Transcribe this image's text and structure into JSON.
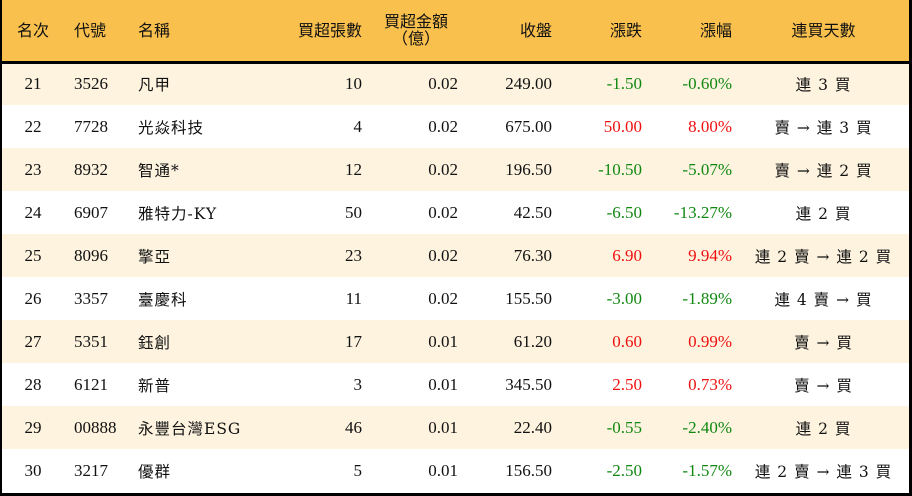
{
  "headers": {
    "rank": "名次",
    "code": "代號",
    "name": "名稱",
    "net_buy_lots": "買超張數",
    "net_buy_amount_line1": "買超金額",
    "net_buy_amount_line2": "（億）",
    "close": "收盤",
    "change": "漲跌",
    "change_pct": "漲幅",
    "streak": "連買天數"
  },
  "colors": {
    "header_bg": "#f9c04d",
    "row_alt_bg": "#fdf3df",
    "up": "#ee1111",
    "down": "#118811",
    "border": "#000000"
  },
  "rows": [
    {
      "rank": "21",
      "code": "3526",
      "name": "凡甲",
      "lots": "10",
      "amount": "0.02",
      "close": "249.00",
      "change": "-1.50",
      "change_pct": "-0.60%",
      "direction": "down",
      "streak": "連 3 買"
    },
    {
      "rank": "22",
      "code": "7728",
      "name": "光焱科技",
      "lots": "4",
      "amount": "0.02",
      "close": "675.00",
      "change": "50.00",
      "change_pct": "8.00%",
      "direction": "up",
      "streak": "賣 → 連 3 買"
    },
    {
      "rank": "23",
      "code": "8932",
      "name": "智通*",
      "lots": "12",
      "amount": "0.02",
      "close": "196.50",
      "change": "-10.50",
      "change_pct": "-5.07%",
      "direction": "down",
      "streak": "賣 → 連 2 買"
    },
    {
      "rank": "24",
      "code": "6907",
      "name": "雅特力-KY",
      "lots": "50",
      "amount": "0.02",
      "close": "42.50",
      "change": "-6.50",
      "change_pct": "-13.27%",
      "direction": "down",
      "streak": "連 2 買"
    },
    {
      "rank": "25",
      "code": "8096",
      "name": "擎亞",
      "lots": "23",
      "amount": "0.02",
      "close": "76.30",
      "change": "6.90",
      "change_pct": "9.94%",
      "direction": "up",
      "streak": "連 2 賣 → 連 2 買"
    },
    {
      "rank": "26",
      "code": "3357",
      "name": "臺慶科",
      "lots": "11",
      "amount": "0.02",
      "close": "155.50",
      "change": "-3.00",
      "change_pct": "-1.89%",
      "direction": "down",
      "streak": "連 4 賣 → 買"
    },
    {
      "rank": "27",
      "code": "5351",
      "name": "鈺創",
      "lots": "17",
      "amount": "0.01",
      "close": "61.20",
      "change": "0.60",
      "change_pct": "0.99%",
      "direction": "up",
      "streak": "賣 → 買"
    },
    {
      "rank": "28",
      "code": "6121",
      "name": "新普",
      "lots": "3",
      "amount": "0.01",
      "close": "345.50",
      "change": "2.50",
      "change_pct": "0.73%",
      "direction": "up",
      "streak": "賣 → 買"
    },
    {
      "rank": "29",
      "code": "00888",
      "name": "永豐台灣ESG",
      "lots": "46",
      "amount": "0.01",
      "close": "22.40",
      "change": "-0.55",
      "change_pct": "-2.40%",
      "direction": "down",
      "streak": "連 2 買"
    },
    {
      "rank": "30",
      "code": "3217",
      "name": "優群",
      "lots": "5",
      "amount": "0.01",
      "close": "156.50",
      "change": "-2.50",
      "change_pct": "-1.57%",
      "direction": "down",
      "streak": "連 2 賣 → 連 3 買"
    }
  ]
}
